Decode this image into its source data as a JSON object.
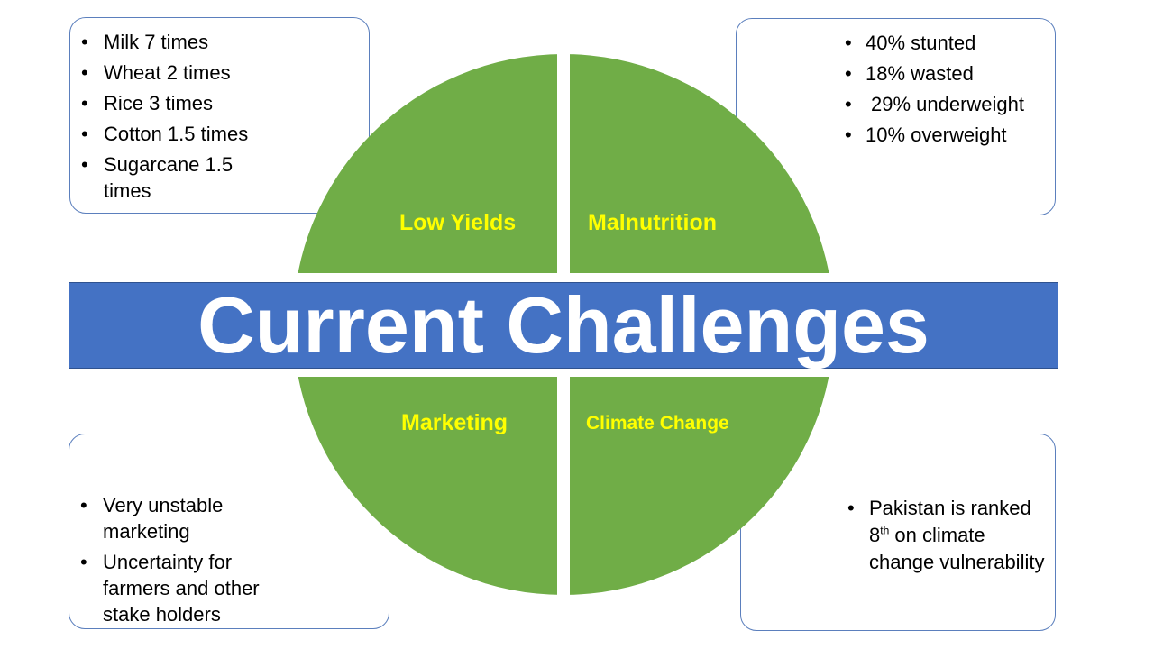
{
  "title": "Current Challenges",
  "colors": {
    "circle": "#70ad47",
    "banner": "#4472c4",
    "label": "#ffff00",
    "box_border": "#5b7fbd"
  },
  "quadrants": {
    "low_yields": "Low Yields",
    "malnutrition": "Malnutrition",
    "marketing": "Marketing",
    "climate_change": "Climate Change"
  },
  "boxes": {
    "low_yields": [
      "Milk 7 times",
      "Wheat 2 times",
      "Rice 3 times",
      "Cotton 1.5 times",
      "Sugarcane 1.5 times"
    ],
    "malnutrition": [
      "40% stunted",
      "18% wasted",
      "29% underweight",
      "10% overweight"
    ],
    "marketing": [
      "Very unstable marketing",
      "Uncertainty for farmers and other stake holders"
    ],
    "climate_change": {
      "before_sup": "Pakistan is ranked 8",
      "sup": "th",
      "after_sup": " on climate change vulnerability"
    }
  }
}
